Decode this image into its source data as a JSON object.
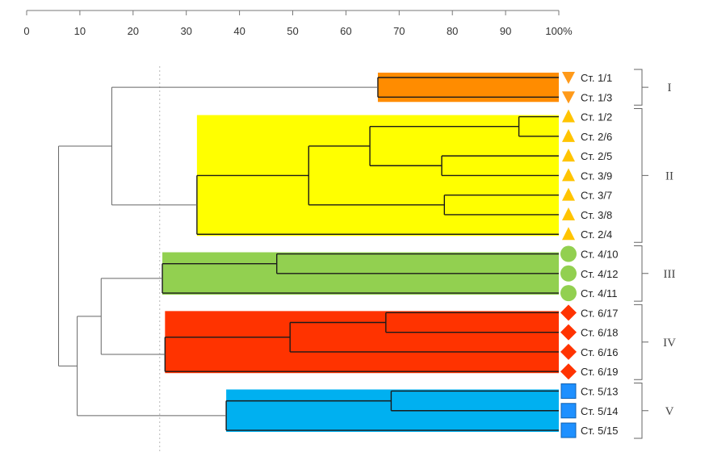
{
  "chart_data": {
    "type": "dendrogram",
    "title": "",
    "x_axis": {
      "min": 0,
      "max": 100,
      "ticks": [
        0,
        10,
        20,
        30,
        40,
        50,
        60,
        70,
        80,
        90,
        100
      ],
      "tick_labels": [
        "0",
        "10",
        "20",
        "30",
        "40",
        "50",
        "60",
        "70",
        "80",
        "90",
        "100%"
      ]
    },
    "reference_line": 25,
    "leaves": [
      {
        "label": "Ст. 1/1",
        "group": "I",
        "marker": "triangle-down"
      },
      {
        "label": "Ст. 1/3",
        "group": "I",
        "marker": "triangle-down"
      },
      {
        "label": "Ст. 1/2",
        "group": "II",
        "marker": "triangle-up"
      },
      {
        "label": "Ст. 2/6",
        "group": "II",
        "marker": "triangle-up"
      },
      {
        "label": "Ст. 2/5",
        "group": "II",
        "marker": "triangle-up"
      },
      {
        "label": "Ст. 3/9",
        "group": "II",
        "marker": "triangle-up"
      },
      {
        "label": "Ст. 3/7",
        "group": "II",
        "marker": "triangle-up"
      },
      {
        "label": "Ст. 3/8",
        "group": "II",
        "marker": "triangle-up"
      },
      {
        "label": "Ст. 2/4",
        "group": "II",
        "marker": "triangle-up"
      },
      {
        "label": "Ст. 4/10",
        "group": "III",
        "marker": "circle"
      },
      {
        "label": "Ст. 4/12",
        "group": "III",
        "marker": "circle"
      },
      {
        "label": "Ст. 4/11",
        "group": "III",
        "marker": "circle"
      },
      {
        "label": "Ст. 6/17",
        "group": "IV",
        "marker": "diamond"
      },
      {
        "label": "Ст. 6/18",
        "group": "IV",
        "marker": "diamond"
      },
      {
        "label": "Ст. 6/16",
        "group": "IV",
        "marker": "diamond"
      },
      {
        "label": "Ст. 6/19",
        "group": "IV",
        "marker": "diamond"
      },
      {
        "label": "Ст. 5/13",
        "group": "V",
        "marker": "square"
      },
      {
        "label": "Ст. 5/14",
        "group": "V",
        "marker": "square"
      },
      {
        "label": "Ст. 5/15",
        "group": "V",
        "marker": "square"
      }
    ],
    "groups": [
      {
        "name": "I",
        "color": "#ff8c00",
        "marker_color": "#ff9a1a"
      },
      {
        "name": "II",
        "color": "#ffff00",
        "marker_color": "#ffc400"
      },
      {
        "name": "III",
        "color": "#92d050",
        "marker_color": "#92d050"
      },
      {
        "name": "IV",
        "color": "#ff3300",
        "marker_color": "#ff3300"
      },
      {
        "name": "V",
        "color": "#00b0f0",
        "marker_color": "#1e90ff"
      }
    ],
    "merges": [
      {
        "a": "L0",
        "b": "L1",
        "value": 66,
        "group": "I"
      },
      {
        "a": "L2",
        "b": "L3",
        "value": 92.5,
        "group": "II"
      },
      {
        "a": "L4",
        "b": "L5",
        "value": 78,
        "group": "II"
      },
      {
        "a": "L6",
        "b": "L7",
        "value": 78.5,
        "group": "II"
      },
      {
        "a": "N1",
        "b": "N2",
        "value": 64.5,
        "group": "II"
      },
      {
        "a": "N3",
        "b": "N4",
        "value": 53,
        "group": "II"
      },
      {
        "a": "N5",
        "b": "L8",
        "value": 32,
        "group": "II"
      },
      {
        "a": "L9",
        "b": "L10",
        "value": 47,
        "group": "III"
      },
      {
        "a": "N7",
        "b": "L11",
        "value": 25.5,
        "group": "III"
      },
      {
        "a": "L12",
        "b": "L13",
        "value": 67.5,
        "group": "IV"
      },
      {
        "a": "N9",
        "b": "L14",
        "value": 49.5,
        "group": "IV"
      },
      {
        "a": "N10",
        "b": "L15",
        "value": 26,
        "group": "IV"
      },
      {
        "a": "L16",
        "b": "L17",
        "value": 68.5,
        "group": "V"
      },
      {
        "a": "N12",
        "b": "L18",
        "value": 37.5,
        "group": "V"
      },
      {
        "a": "N0",
        "b": "N6",
        "value": 16,
        "group": null
      },
      {
        "a": "N8",
        "b": "N11",
        "value": 14,
        "group": null
      },
      {
        "a": "N15",
        "b": "N13",
        "value": 9.5,
        "group": null
      },
      {
        "a": "N14",
        "b": "N16",
        "value": 6,
        "group": null
      }
    ]
  }
}
